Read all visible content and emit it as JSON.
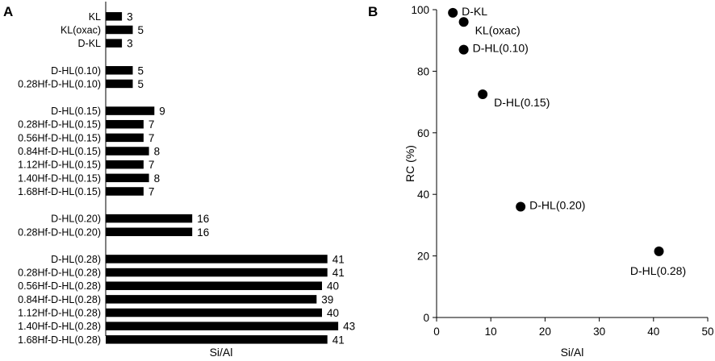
{
  "chart_data": [
    {
      "panel_label": "A",
      "type": "bar",
      "orientation": "horizontal",
      "xlabel": "Si/Al",
      "ylabel": "",
      "xlim": [
        0,
        45
      ],
      "groups": [
        {
          "categories": [
            "KL",
            "KL(oxac)",
            "D-KL"
          ],
          "values": [
            3,
            5,
            3
          ]
        },
        {
          "categories": [
            "D-HL(0.10)",
            "0.28Hf-D-HL(0.10)"
          ],
          "values": [
            5,
            5
          ]
        },
        {
          "categories": [
            "D-HL(0.15)",
            "0.28Hf-D-HL(0.15)",
            "0.56Hf-D-HL(0.15)",
            "0.84Hf-D-HL(0.15)",
            "1.12Hf-D-HL(0.15)",
            "1.40Hf-D-HL(0.15)",
            "1.68Hf-D-HL(0.15)"
          ],
          "values": [
            9,
            7,
            7,
            8,
            7,
            8,
            7
          ]
        },
        {
          "categories": [
            "D-HL(0.20)",
            "0.28Hf-D-HL(0.20)"
          ],
          "values": [
            16,
            16
          ]
        },
        {
          "categories": [
            "D-HL(0.28)",
            "0.28Hf-D-HL(0.28)",
            "0.56Hf-D-HL(0.28)",
            "0.84Hf-D-HL(0.28)",
            "1.12Hf-D-HL(0.28)",
            "1.40Hf-D-HL(0.28)",
            "1.68Hf-D-HL(0.28)"
          ],
          "values": [
            41,
            41,
            40,
            39,
            40,
            43,
            41
          ]
        }
      ],
      "bar_color": "#000000"
    },
    {
      "panel_label": "B",
      "type": "scatter",
      "xlabel": "Si/Al",
      "ylabel": "RC (%)",
      "xlim": [
        0,
        50
      ],
      "ylim": [
        0,
        100
      ],
      "xticks": [
        0,
        10,
        20,
        30,
        40,
        50
      ],
      "yticks": [
        0,
        20,
        40,
        60,
        80,
        100
      ],
      "points": [
        {
          "label": "D-KL",
          "x": 3,
          "y": 99,
          "label_pos": "right"
        },
        {
          "label": "KL(oxac)",
          "x": 5,
          "y": 96,
          "label_pos": "below-right"
        },
        {
          "label": "D-HL(0.10)",
          "x": 5,
          "y": 87,
          "label_pos": "right"
        },
        {
          "label": "D-HL(0.15)",
          "x": 8.5,
          "y": 72.5,
          "label_pos": "below-right"
        },
        {
          "label": "D-HL(0.20)",
          "x": 15.5,
          "y": 36,
          "label_pos": "right"
        },
        {
          "label": "D-HL(0.28)",
          "x": 41,
          "y": 21.5,
          "label_pos": "below"
        }
      ],
      "marker_color": "#000000"
    }
  ]
}
